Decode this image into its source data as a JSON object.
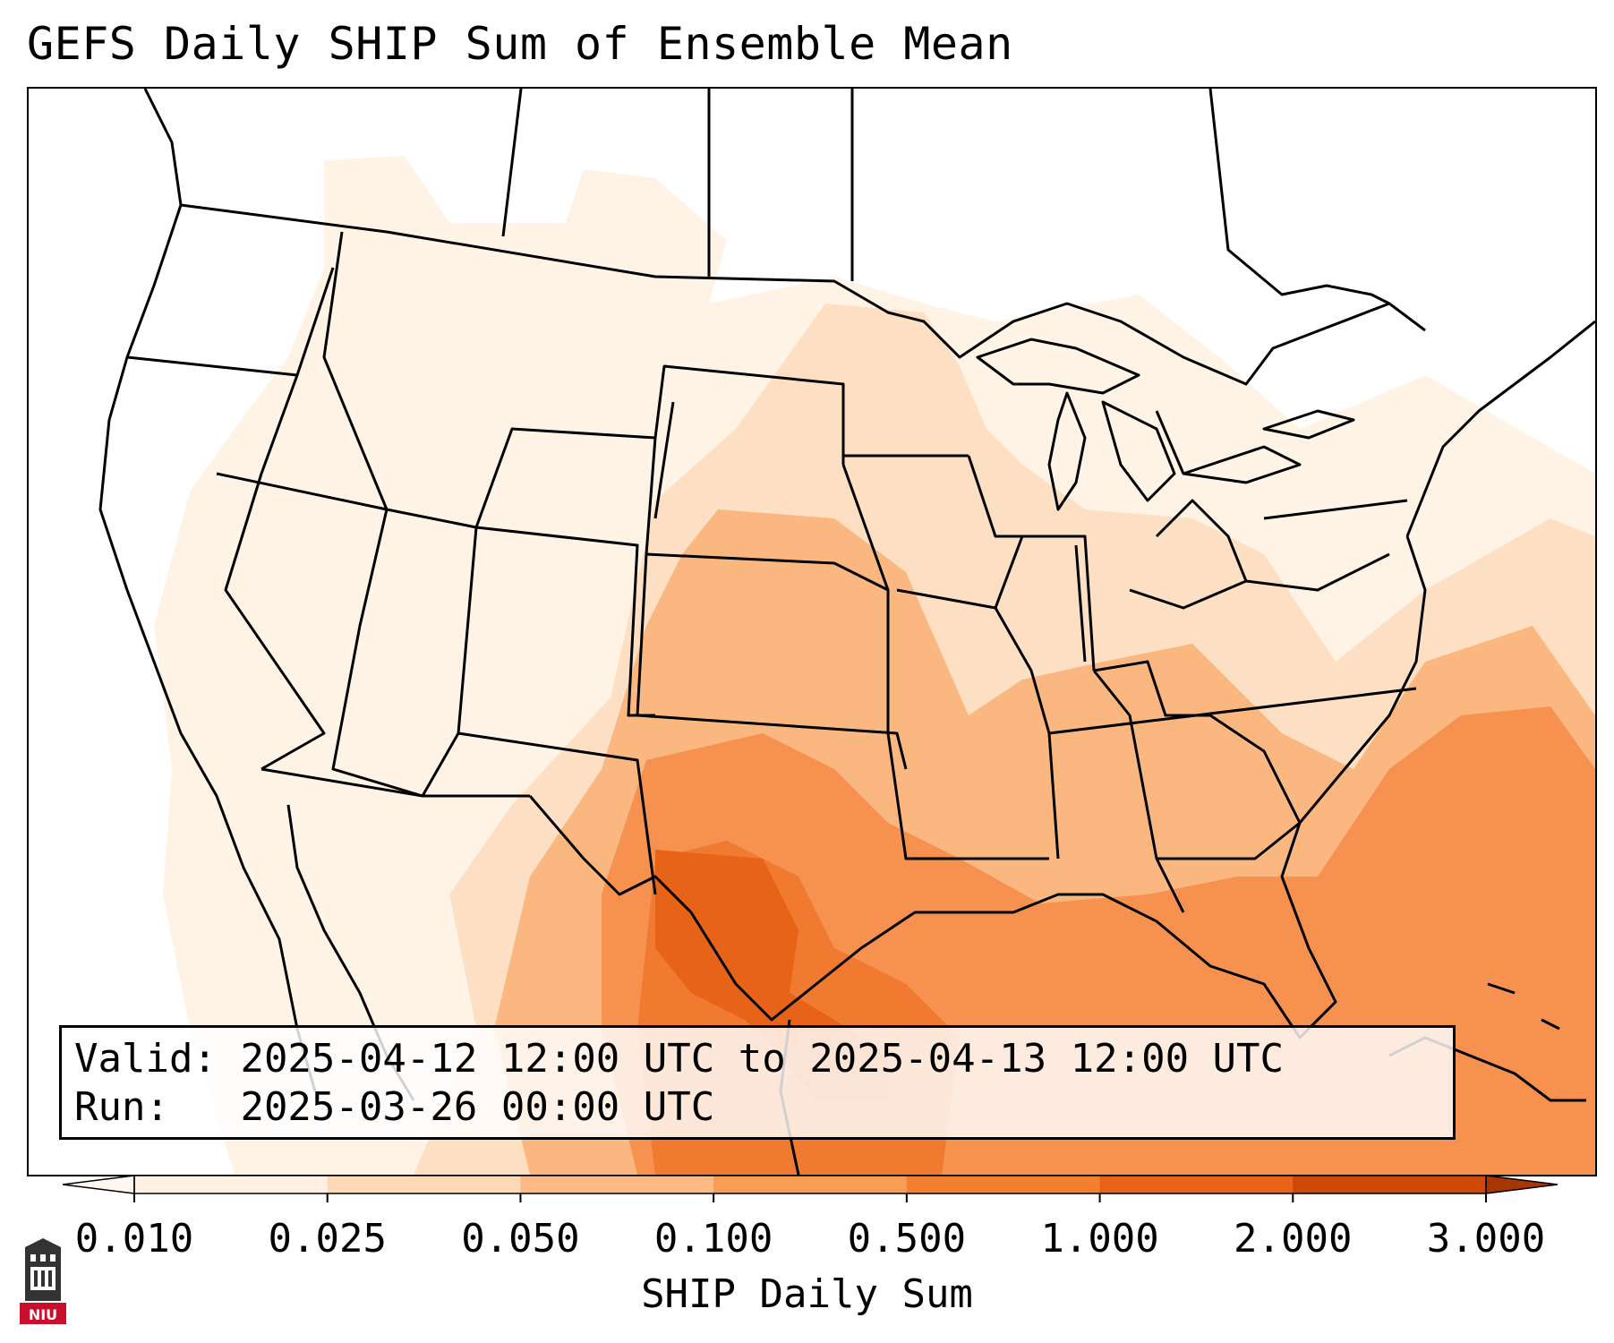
{
  "title": "GEFS Daily SHIP Sum of Ensemble Mean",
  "info": {
    "valid_label": "Valid:",
    "valid_value": "2025-04-12 12:00 UTC to 2025-04-13 12:00 UTC",
    "run_label": "Run:",
    "run_value": "2025-03-26 00:00 UTC"
  },
  "colorbar": {
    "label": "SHIP Daily Sum",
    "ticks": [
      "0.010",
      "0.025",
      "0.050",
      "0.100",
      "0.500",
      "1.000",
      "2.000",
      "3.000"
    ],
    "colors": [
      "#fef0e2",
      "#fdd9b6",
      "#fdba84",
      "#f99c55",
      "#f3802f",
      "#e8621a",
      "#cc4a06"
    ],
    "under_color": "#fff7ef",
    "over_color": "#a83603"
  },
  "logo": {
    "text": "NIU",
    "icon": "niu-tower-logo-icon"
  },
  "map": {
    "region": "CONUS",
    "shading_colors": {
      "very_light": "#fff3e6",
      "light": "#fde0c4",
      "medium": "#fbb780",
      "strong": "#f69150",
      "stronger": "#f07a30",
      "darkest": "#e66318"
    }
  }
}
